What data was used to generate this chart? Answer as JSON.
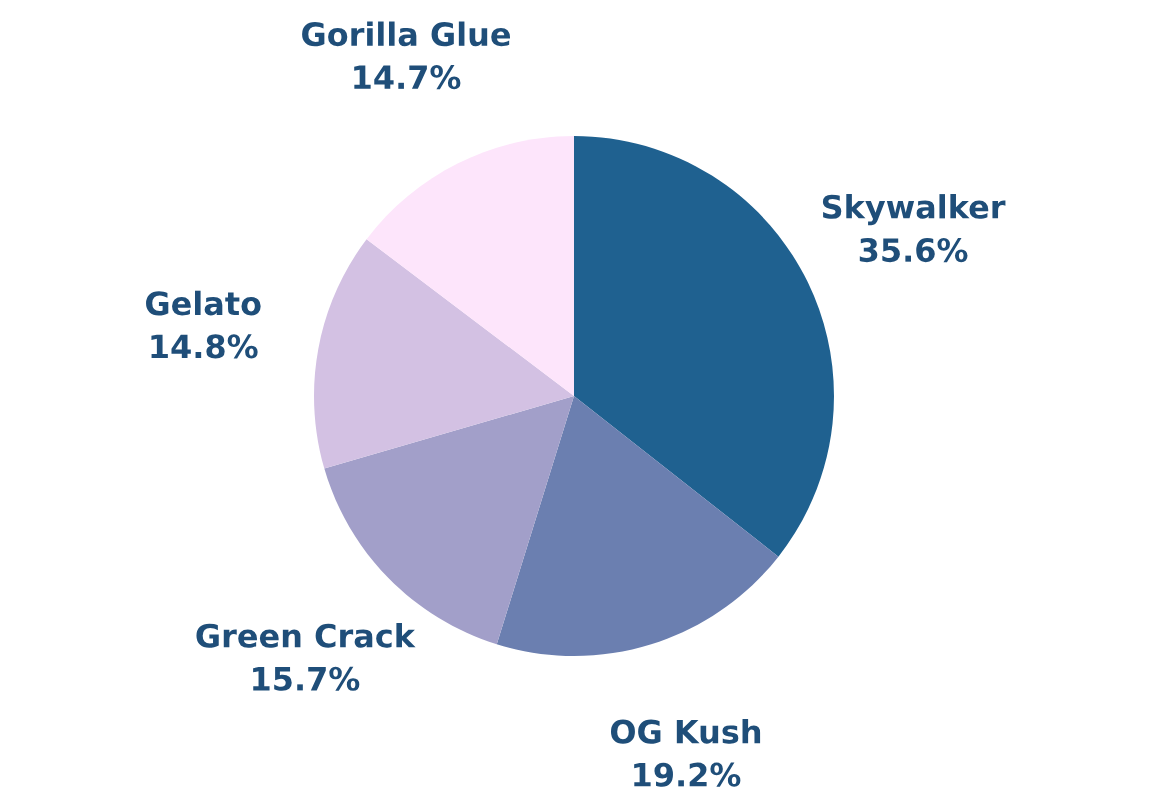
{
  "chart_data": {
    "type": "pie",
    "categories": [
      "Skywalker",
      "OG Kush",
      "Green Crack",
      "Gelato",
      "Gorilla Glue"
    ],
    "values": [
      35.6,
      19.2,
      15.7,
      14.8,
      14.7
    ],
    "colors": [
      "#1f6190",
      "#6b7fb0",
      "#a29fc9",
      "#d3c1e3",
      "#fde5fb"
    ],
    "value_labels": [
      "35.6%",
      "19.2%",
      "15.7%",
      "14.8%",
      "14.7%"
    ]
  }
}
